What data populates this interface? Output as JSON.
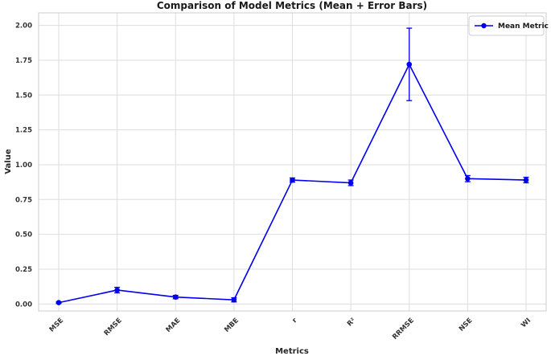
{
  "chart": {
    "title": "Comparison of Model Metrics (Mean + Error Bars)",
    "xlabel": "Metrics",
    "ylabel": "Value",
    "legend_label": "Mean Metric"
  },
  "chart_data": {
    "type": "line",
    "title": "Comparison of Model Metrics (Mean + Error Bars)",
    "xlabel": "Metrics",
    "ylabel": "Value",
    "categories": [
      "MSE",
      "RMSE",
      "MAE",
      "MBE",
      "r",
      "R²",
      "RRMSE",
      "NSE",
      "WI"
    ],
    "series": [
      {
        "name": "Mean Metric",
        "values": [
          0.01,
          0.1,
          0.05,
          0.03,
          0.89,
          0.87,
          1.72,
          0.9,
          0.89
        ],
        "errors": [
          0.005,
          0.02,
          0.012,
          0.015,
          0.015,
          0.02,
          0.26,
          0.022,
          0.02
        ]
      }
    ],
    "ylim": [
      -0.05,
      2.09
    ],
    "yticks": [
      0.0,
      0.25,
      0.5,
      0.75,
      1.0,
      1.25,
      1.5,
      1.75,
      2.0
    ],
    "ytick_labels": [
      "0.00",
      "0.25",
      "0.50",
      "0.75",
      "1.00",
      "1.25",
      "1.50",
      "1.75",
      "2.00"
    ],
    "grid": true,
    "legend_position": "upper right",
    "colors": {
      "line": "#0000ee",
      "grid": "#dddddd",
      "spine": "#cccccc",
      "legend_border": "#cccccc",
      "background": "#ffffff"
    }
  }
}
